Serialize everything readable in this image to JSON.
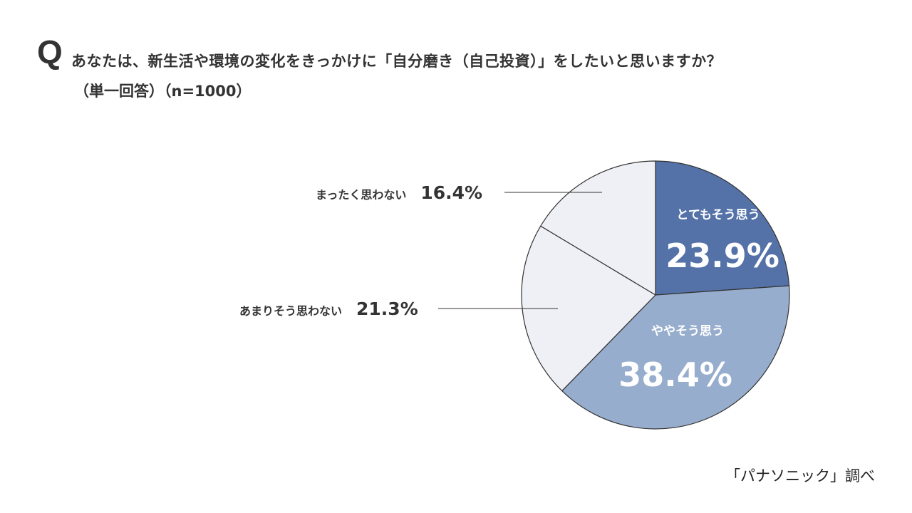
{
  "question": {
    "mark": "Q",
    "text": "あなたは、新生活や環境の変化をきっかけに「自分磨き（自己投資）」をしたいと思いますか？",
    "sub": "（単一回答）（n=1000）"
  },
  "source": "「パナソニック」調べ",
  "colors": {
    "very_much": "#5472A8",
    "somewhat": "#97ADCD",
    "not_much": "#EEF0F5",
    "not_at_all": "#EEF0F5",
    "stroke": "#333333"
  },
  "labels": {
    "very_much_name": "とてもそう思う",
    "very_much_value": "23.9%",
    "somewhat_name": "ややそう思う",
    "somewhat_value": "38.4%",
    "not_much_name": "あまりそう思わない",
    "not_much_value": "21.3%",
    "not_at_all_name": "まったく思わない",
    "not_at_all_value": "16.4%"
  },
  "chart_data": {
    "type": "pie",
    "title": "あなたは、新生活や環境の変化をきっかけに「自分磨き（自己投資）」をしたいと思いますか？（単一回答）（n=1000）",
    "categories": [
      "とてもそう思う",
      "ややそう思う",
      "あまりそう思わない",
      "まったく思わない"
    ],
    "values": [
      23.9,
      38.4,
      21.3,
      16.4
    ],
    "unit": "%",
    "start_angle": "12 o'clock, clockwise",
    "colors": [
      "#5472A8",
      "#97ADCD",
      "#EEF0F5",
      "#EEF0F5"
    ],
    "label_position": "inside for first two slices, outside with leader lines for last two",
    "source": "「パナソニック」調べ"
  }
}
